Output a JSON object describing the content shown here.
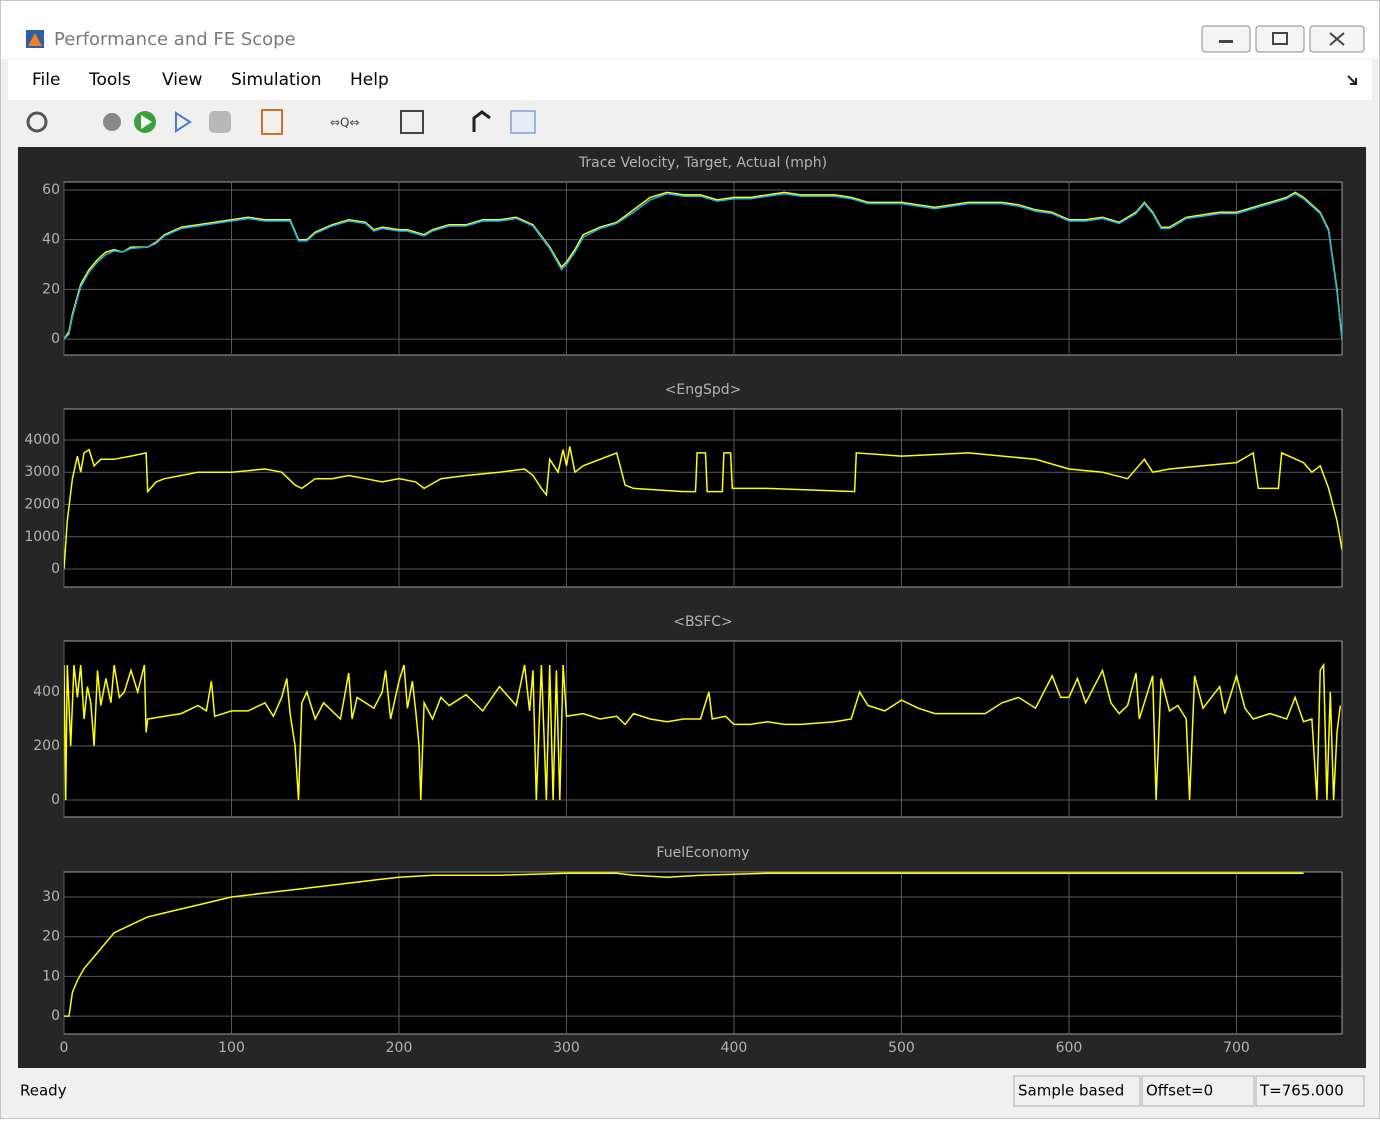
{
  "window": {
    "title": "Performance and FE Scope"
  },
  "menu": [
    "File",
    "Tools",
    "View",
    "Simulation",
    "Help"
  ],
  "status": {
    "left": "Ready",
    "mode": "Sample based",
    "offset": "Offset=0",
    "time": "T=765.000"
  },
  "chart_data": [
    {
      "type": "line",
      "title": "Trace Velocity, Target, Actual (mph)",
      "x": [
        0,
        3,
        5,
        10,
        15,
        20,
        25,
        30,
        35,
        40,
        50,
        55,
        60,
        70,
        80,
        90,
        100,
        110,
        120,
        135,
        140,
        145,
        150,
        160,
        170,
        180,
        185,
        190,
        200,
        205,
        210,
        215,
        220,
        230,
        240,
        250,
        260,
        270,
        280,
        290,
        297,
        300,
        305,
        310,
        320,
        330,
        340,
        350,
        360,
        370,
        380,
        390,
        400,
        410,
        420,
        430,
        440,
        450,
        460,
        470,
        480,
        490,
        500,
        510,
        520,
        530,
        540,
        550,
        560,
        570,
        580,
        590,
        600,
        610,
        620,
        630,
        640,
        645,
        650,
        655,
        660,
        665,
        670,
        680,
        690,
        700,
        710,
        720,
        730,
        735,
        740,
        750,
        755,
        760,
        763
      ],
      "series": [
        {
          "color": "#ffff00",
          "values": [
            0,
            3,
            10,
            22,
            28,
            32,
            35,
            36,
            35,
            37,
            37,
            39,
            42,
            45,
            46,
            47,
            48,
            49,
            48,
            48,
            40,
            40,
            43,
            46,
            48,
            47,
            44,
            45,
            44,
            44,
            43,
            42,
            44,
            46,
            46,
            48,
            48,
            49,
            46,
            37,
            29,
            31,
            36,
            42,
            45,
            47,
            52,
            57,
            59,
            58,
            58,
            56,
            57,
            57,
            58,
            59,
            58,
            58,
            58,
            57,
            55,
            55,
            55,
            54,
            53,
            54,
            55,
            55,
            55,
            54,
            52,
            51,
            48,
            48,
            49,
            47,
            51,
            55,
            51,
            45,
            45,
            47,
            49,
            50,
            51,
            51,
            53,
            55,
            57,
            59,
            57,
            51,
            44,
            20,
            0
          ]
        },
        {
          "color": "#1ab0f0",
          "values": [
            0,
            2,
            9,
            21,
            27,
            31,
            34,
            35.5,
            35,
            36.5,
            37,
            38.5,
            41.5,
            44.5,
            45.5,
            46.5,
            47.5,
            48.5,
            47.5,
            47.5,
            39.5,
            39.5,
            42.5,
            45.5,
            47.5,
            46.5,
            43.5,
            44.5,
            43.5,
            43.5,
            42.5,
            41.5,
            43.5,
            45.5,
            45.5,
            47.5,
            47.5,
            48.5,
            45.5,
            36.5,
            28,
            30,
            35,
            41,
            44.5,
            46.5,
            51,
            56,
            58.5,
            57.5,
            57.5,
            55.5,
            56.5,
            56.5,
            57.5,
            58.5,
            57.5,
            57.5,
            57.5,
            56.5,
            54.5,
            54.5,
            54.5,
            53.5,
            52.5,
            53.5,
            54.5,
            54.5,
            54.5,
            53.5,
            51.5,
            50.5,
            47.5,
            47.5,
            48.5,
            46.5,
            50.5,
            54.5,
            50.5,
            44.5,
            44.5,
            46.5,
            48.5,
            49.5,
            50.5,
            50.5,
            52.5,
            54.5,
            56.5,
            58.5,
            56.5,
            50.5,
            43.5,
            19,
            0
          ]
        }
      ],
      "xlim": [
        0,
        763
      ],
      "xticks": [
        0,
        100,
        200,
        300,
        400,
        500,
        600,
        700
      ],
      "ylim": [
        -6.4,
        63.2
      ],
      "yticks": [
        0,
        20,
        40,
        60
      ],
      "grid": true
    },
    {
      "type": "line",
      "title": "<EngSpd>",
      "x": [
        0,
        2,
        5,
        8,
        10,
        12,
        15,
        18,
        22,
        30,
        40,
        49,
        50,
        55,
        60,
        70,
        80,
        100,
        120,
        130,
        138,
        142,
        150,
        160,
        170,
        180,
        190,
        200,
        210,
        215,
        225,
        240,
        260,
        275,
        280,
        285,
        288,
        290,
        295,
        298,
        300,
        302,
        305,
        310,
        330,
        335,
        340,
        370,
        377,
        378,
        383,
        384,
        393,
        394,
        398,
        399,
        420,
        472,
        473,
        500,
        540,
        580,
        600,
        620,
        635,
        645,
        650,
        660,
        680,
        700,
        710,
        713,
        725,
        727,
        740,
        745,
        750,
        755,
        760,
        763
      ],
      "series": [
        {
          "color": "#ffff00",
          "values": [
            0,
            1500,
            2800,
            3500,
            3000,
            3600,
            3700,
            3200,
            3400,
            3400,
            3500,
            3600,
            2400,
            2700,
            2800,
            2900,
            3000,
            3000,
            3100,
            3000,
            2600,
            2500,
            2800,
            2800,
            2900,
            2800,
            2700,
            2800,
            2700,
            2500,
            2800,
            2900,
            3000,
            3100,
            2900,
            2500,
            2300,
            3400,
            3000,
            3700,
            3200,
            3800,
            3000,
            3200,
            3600,
            2600,
            2500,
            2400,
            2400,
            3600,
            3600,
            2400,
            2400,
            3600,
            3600,
            2500,
            2500,
            2400,
            3600,
            3500,
            3600,
            3400,
            3100,
            3000,
            2800,
            3400,
            3000,
            3100,
            3200,
            3300,
            3600,
            2500,
            2500,
            3600,
            3300,
            3000,
            3200,
            2500,
            1500,
            600
          ]
        }
      ],
      "xlim": [
        0,
        763
      ],
      "xticks": [
        0,
        100,
        200,
        300,
        400,
        500,
        600,
        700
      ],
      "ylim": [
        -558,
        4961
      ],
      "yticks": [
        0,
        1000,
        2000,
        3000,
        4000
      ],
      "grid": true
    },
    {
      "type": "line",
      "title": "<BSFC>",
      "x": [
        0,
        1,
        2,
        4,
        6,
        8,
        10,
        12,
        14,
        16,
        18,
        20,
        22,
        25,
        28,
        30,
        33,
        36,
        40,
        44,
        48,
        49,
        50,
        60,
        70,
        80,
        85,
        88,
        90,
        100,
        110,
        120,
        125,
        130,
        133,
        135,
        138,
        140,
        142,
        145,
        150,
        155,
        160,
        165,
        170,
        172,
        175,
        180,
        185,
        190,
        192,
        195,
        200,
        203,
        205,
        208,
        210,
        212,
        213,
        215,
        220,
        225,
        230,
        240,
        250,
        260,
        270,
        275,
        278,
        280,
        282,
        285,
        288,
        290,
        292,
        294,
        296,
        298,
        300,
        310,
        320,
        330,
        335,
        340,
        350,
        360,
        370,
        380,
        385,
        387,
        395,
        400,
        410,
        420,
        430,
        440,
        460,
        470,
        475,
        480,
        490,
        500,
        510,
        520,
        530,
        550,
        560,
        570,
        580,
        590,
        595,
        600,
        605,
        610,
        620,
        625,
        630,
        635,
        640,
        642,
        650,
        652,
        655,
        660,
        665,
        670,
        672,
        675,
        680,
        690,
        693,
        700,
        705,
        710,
        720,
        730,
        735,
        740,
        745,
        748,
        750,
        752,
        754,
        756,
        758,
        760,
        762
      ],
      "series": [
        {
          "color": "#ffff00",
          "values": [
            500,
            0,
            500,
            200,
            500,
            380,
            500,
            300,
            420,
            360,
            200,
            480,
            350,
            450,
            360,
            500,
            380,
            400,
            480,
            400,
            500,
            250,
            300,
            310,
            320,
            350,
            330,
            440,
            310,
            330,
            330,
            360,
            310,
            380,
            450,
            320,
            200,
            0,
            360,
            400,
            300,
            360,
            330,
            300,
            470,
            300,
            380,
            360,
            340,
            400,
            480,
            300,
            440,
            500,
            340,
            440,
            330,
            200,
            0,
            360,
            300,
            380,
            350,
            390,
            330,
            420,
            350,
            500,
            330,
            480,
            0,
            500,
            0,
            500,
            0,
            480,
            0,
            500,
            310,
            320,
            300,
            310,
            280,
            320,
            300,
            290,
            300,
            300,
            400,
            300,
            310,
            280,
            280,
            290,
            280,
            280,
            290,
            300,
            400,
            350,
            330,
            370,
            340,
            320,
            320,
            320,
            360,
            380,
            340,
            460,
            380,
            380,
            450,
            360,
            480,
            360,
            320,
            350,
            470,
            300,
            460,
            0,
            450,
            330,
            350,
            300,
            0,
            460,
            340,
            420,
            320,
            460,
            340,
            300,
            320,
            300,
            380,
            290,
            300,
            0,
            480,
            500,
            0,
            400,
            0,
            250,
            350
          ]
        }
      ],
      "xlim": [
        0,
        763
      ],
      "xticks": [
        0,
        100,
        200,
        300,
        400,
        500,
        600,
        700
      ],
      "ylim": [
        -63,
        589
      ],
      "yticks": [
        0,
        200,
        400
      ],
      "grid": true
    },
    {
      "type": "line",
      "title": "FuelEconomy",
      "x": [
        0,
        3,
        5,
        8,
        12,
        20,
        30,
        40,
        50,
        60,
        80,
        100,
        120,
        140,
        160,
        180,
        200,
        220,
        260,
        300,
        330,
        340,
        360,
        380,
        420,
        500,
        600,
        700,
        740
      ],
      "series": [
        {
          "color": "#ffff00",
          "values": [
            0,
            0,
            6,
            9,
            12,
            16,
            21,
            23,
            25,
            26,
            28,
            30,
            31,
            32,
            33,
            34,
            35,
            35.5,
            35.5,
            36,
            36,
            35.5,
            35,
            35.5,
            36,
            36,
            36,
            36,
            36
          ]
        }
      ],
      "xlim": [
        0,
        763
      ],
      "xticks": [
        0,
        100,
        200,
        300,
        400,
        500,
        600,
        700
      ],
      "ylim": [
        -4.5,
        36.3
      ],
      "yticks": [
        0,
        10,
        20,
        30
      ],
      "grid": true
    }
  ]
}
